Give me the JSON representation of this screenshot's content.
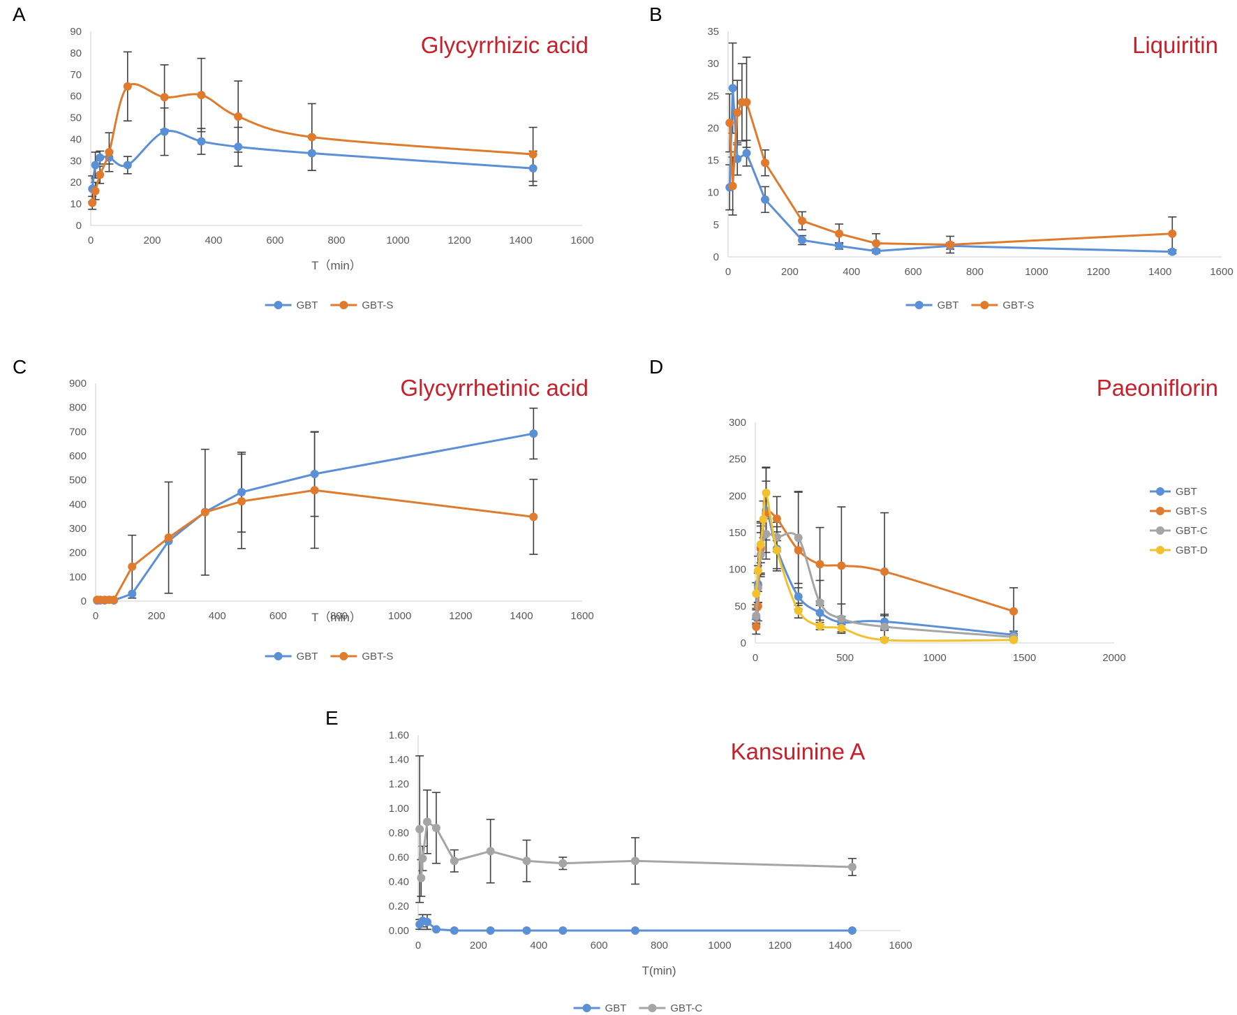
{
  "colors": {
    "GBT": "#5B8FD6",
    "GBT-S": "#E07B2E",
    "GBT-C": "#A5A5A5",
    "GBT-D": "#F2C12E",
    "title": "#C8202A",
    "axis": "#D9D9D9",
    "tick": "#595959",
    "errorbar": "#404040"
  },
  "chart_data": [
    {
      "panel": "A",
      "type": "line",
      "title": "Glycyrrhizic acid",
      "xlabel": "T（min）",
      "ylabel": "",
      "xlim": [
        0,
        1600
      ],
      "ylim": [
        0,
        90
      ],
      "x_ticks": [
        0,
        200,
        400,
        600,
        800,
        1000,
        1200,
        1400,
        1600
      ],
      "y_ticks": [
        0,
        10,
        20,
        30,
        40,
        50,
        60,
        70,
        80,
        90
      ],
      "legend_position": "bottom",
      "smooth": true,
      "series": [
        {
          "name": "GBT",
          "x": [
            5,
            15,
            30,
            60,
            120,
            240,
            360,
            480,
            720,
            1440
          ],
          "y": [
            17,
            28,
            31.5,
            31.5,
            28,
            43.5,
            39,
            36.5,
            33.5,
            26.5
          ],
          "err": [
            6,
            6,
            3,
            3,
            4,
            11,
            6,
            9,
            8,
            8
          ]
        },
        {
          "name": "GBT-S",
          "x": [
            5,
            15,
            30,
            60,
            120,
            240,
            360,
            480,
            720,
            1440
          ],
          "y": [
            10.5,
            16,
            23.5,
            34,
            64.5,
            59.5,
            60.5,
            50.5,
            41,
            33
          ],
          "err": [
            3,
            4,
            4,
            9,
            16,
            15,
            17,
            16.5,
            15.5,
            12.5
          ]
        }
      ]
    },
    {
      "panel": "B",
      "type": "line",
      "title": "Liquiritin",
      "xlabel": "",
      "ylabel": "",
      "xlim": [
        0,
        1600
      ],
      "ylim": [
        0,
        35
      ],
      "x_ticks": [
        0,
        200,
        400,
        600,
        800,
        1000,
        1200,
        1400,
        1600
      ],
      "y_ticks": [
        0,
        5,
        10,
        15,
        20,
        25,
        30,
        35
      ],
      "legend_position": "bottom",
      "smooth": false,
      "series": [
        {
          "name": "GBT",
          "x": [
            5,
            15,
            30,
            60,
            120,
            240,
            360,
            480,
            720,
            1440
          ],
          "y": [
            10.8,
            26.2,
            15.2,
            16.1,
            8.9,
            2.6,
            1.7,
            0.9,
            1.7,
            0.8
          ],
          "err": [
            3.5,
            7,
            2.5,
            2,
            2,
            0.7,
            0.5,
            0.3,
            0.5,
            0.3
          ]
        },
        {
          "name": "GBT-S",
          "x": [
            5,
            15,
            30,
            45,
            60,
            120,
            240,
            360,
            480,
            720,
            1440
          ],
          "y": [
            20.8,
            11,
            22.4,
            24,
            24,
            14.6,
            5.6,
            3.6,
            2.1,
            1.9,
            3.6
          ],
          "err": [
            4.5,
            4.5,
            5,
            6,
            7,
            2,
            1.4,
            1.5,
            1.5,
            1.3,
            2.6
          ]
        }
      ]
    },
    {
      "panel": "C",
      "type": "line",
      "title": "Glycyrrhetinic acid",
      "xlabel": "T（min）",
      "ylabel": "",
      "xlim": [
        0,
        1600
      ],
      "ylim": [
        0,
        900
      ],
      "x_ticks": [
        0,
        200,
        400,
        600,
        800,
        1000,
        1200,
        1400,
        1600
      ],
      "y_ticks": [
        0,
        100,
        200,
        300,
        400,
        500,
        600,
        700,
        800,
        900
      ],
      "legend_position": "bottom",
      "smooth": false,
      "series": [
        {
          "name": "GBT",
          "x": [
            5,
            15,
            30,
            60,
            120,
            240,
            360,
            480,
            720,
            1440
          ],
          "y": [
            2,
            3,
            3,
            3,
            30,
            248,
            368,
            450,
            525,
            692
          ],
          "err": [
            0,
            0,
            0,
            0,
            0,
            0,
            0,
            165,
            175,
            105
          ]
        },
        {
          "name": "GBT-S",
          "x": [
            5,
            15,
            30,
            45,
            60,
            120,
            240,
            360,
            480,
            720,
            1440
          ],
          "y": [
            5,
            5,
            5,
            5,
            5,
            142,
            262,
            367,
            412,
            458,
            348
          ],
          "err": [
            0,
            0,
            0,
            0,
            0,
            130,
            230,
            260,
            195,
            240,
            155
          ]
        }
      ]
    },
    {
      "panel": "D",
      "type": "line",
      "title": "Paeoniflorin",
      "xlabel": "",
      "ylabel": "",
      "xlim": [
        0,
        2000
      ],
      "ylim": [
        0,
        300
      ],
      "x_ticks": [
        0,
        500,
        1000,
        1500,
        2000
      ],
      "y_ticks": [
        0,
        50,
        100,
        150,
        200,
        250,
        300
      ],
      "legend_position": "right",
      "smooth": true,
      "series": [
        {
          "name": "GBT",
          "x": [
            5,
            15,
            30,
            60,
            120,
            240,
            360,
            480,
            720,
            1440
          ],
          "y": [
            35,
            80,
            130,
            180,
            128,
            63,
            41,
            28,
            29,
            11
          ],
          "err": [
            10,
            25,
            35,
            40,
            30,
            12,
            10,
            8,
            10,
            5
          ]
        },
        {
          "name": "GBT-S",
          "x": [
            5,
            15,
            30,
            60,
            120,
            240,
            360,
            480,
            720,
            1440
          ],
          "y": [
            22,
            50,
            128,
            176,
            169,
            126,
            107,
            105,
            97,
            43
          ],
          "err": [
            10,
            20,
            35,
            62,
            30,
            80,
            50,
            80,
            80,
            32
          ]
        },
        {
          "name": "GBT-C",
          "x": [
            5,
            15,
            30,
            60,
            120,
            240,
            360,
            480,
            720,
            1440
          ],
          "y": [
            37,
            75,
            120,
            148,
            144,
            143,
            55,
            33,
            22,
            8
          ],
          "err": [
            10,
            20,
            30,
            25,
            20,
            62,
            30,
            20,
            15,
            5
          ]
        },
        {
          "name": "GBT-D",
          "x": [
            5,
            15,
            30,
            45,
            60,
            120,
            240,
            360,
            480,
            720,
            1440
          ],
          "y": [
            67,
            98,
            134,
            168,
            204,
            126,
            44,
            23,
            20,
            4,
            4
          ],
          "err": [
            15,
            20,
            25,
            25,
            35,
            25,
            10,
            5,
            5,
            1,
            1
          ]
        }
      ]
    },
    {
      "panel": "E",
      "type": "line",
      "title": "Kansuinine A",
      "xlabel": "T(min)",
      "ylabel": "",
      "xlim": [
        0,
        1600
      ],
      "ylim": [
        0,
        1.6
      ],
      "x_ticks": [
        0,
        200,
        400,
        600,
        800,
        1000,
        1200,
        1400,
        1600
      ],
      "y_ticks": [
        "0.00",
        "0.20",
        "0.40",
        "0.60",
        "0.80",
        "1.00",
        "1.20",
        "1.40",
        "1.60"
      ],
      "legend_position": "bottom",
      "smooth": false,
      "series": [
        {
          "name": "GBT",
          "x": [
            5,
            15,
            30,
            60,
            120,
            240,
            360,
            480,
            720,
            1440
          ],
          "y": [
            0.05,
            0.08,
            0.07,
            0.01,
            0,
            0,
            0,
            0,
            0,
            0
          ],
          "err": [
            0.04,
            0.05,
            0.06,
            0,
            0,
            0,
            0,
            0,
            0,
            0
          ]
        },
        {
          "name": "GBT-C",
          "x": [
            5,
            10,
            15,
            30,
            60,
            120,
            240,
            360,
            480,
            720,
            1440
          ],
          "y": [
            0.83,
            0.43,
            0.59,
            0.89,
            0.84,
            0.57,
            0.65,
            0.57,
            0.55,
            0.57,
            0.52
          ],
          "err": [
            0.6,
            0.15,
            0.1,
            0.26,
            0.29,
            0.09,
            0.26,
            0.17,
            0.05,
            0.19,
            0.07
          ]
        }
      ]
    }
  ]
}
